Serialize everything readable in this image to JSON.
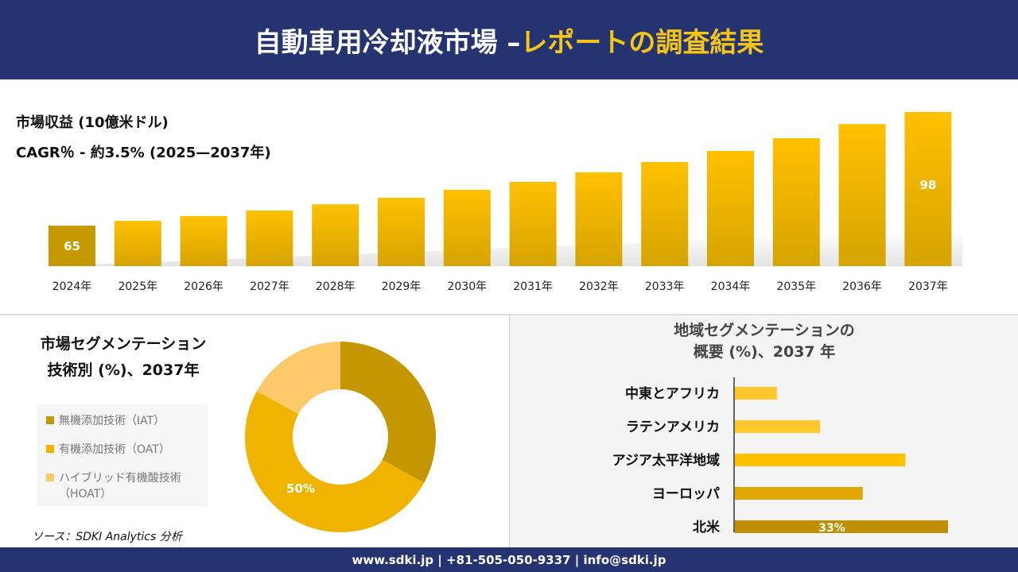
{
  "header": {
    "title_white": "自動車用冷却液市場 –",
    "title_yellow": "レポートの調査結果"
  },
  "revenue": {
    "label": "市場収益 (10億米ドル)",
    "cagr": "CAGR％ - 約3.5% (2025—2037年)"
  },
  "chart_data": [
    {
      "type": "bar",
      "categories": [
        "2024年",
        "2025年",
        "2026年",
        "2027年",
        "2028年",
        "2029年",
        "2030年",
        "2031年",
        "2032年",
        "2033年",
        "2034年",
        "2035年",
        "2036年",
        "2037年"
      ],
      "values": [
        65,
        66.4,
        67.8,
        69.4,
        71.2,
        73.1,
        75.4,
        77.7,
        80.5,
        83.5,
        86.7,
        90.4,
        94.5,
        98
      ],
      "data_labels": {
        "0": "65",
        "13": "98"
      },
      "ylabel": "市場収益 (10億米ドル)",
      "grid": false,
      "bar_color": "#f0b400"
    },
    {
      "type": "pie",
      "title": "市場セグメンテーション 技術別 (%)、2037年",
      "donut": true,
      "labels": [
        "無機添加技術（IAT）",
        "有機添加技術（OAT）",
        "ハイブリッド有機酸技術（HOAT）"
      ],
      "values": [
        33,
        50,
        17
      ],
      "colors": [
        "#c49600",
        "#f0b400",
        "#fdc96a"
      ],
      "data_labels": {
        "1": "50%"
      },
      "legend": "left"
    },
    {
      "type": "bar",
      "orientation": "horizontal",
      "title": "地域セグメンテーションの 概要 (%)、2037 年",
      "categories": [
        "中東とアフリカ",
        "ラテンアメリカ",
        "アジア太平洋地域",
        "ヨーロッパ",
        "北米"
      ],
      "values": [
        6.5,
        13.2,
        26.4,
        19.8,
        33
      ],
      "colors": [
        "#ffc72c",
        "#ffc72c",
        "#ffc000",
        "#e0a800",
        "#bf8f00"
      ],
      "data_labels": {
        "4": "33%"
      }
    }
  ],
  "segment": {
    "title_line1": "市場セグメンテーション",
    "title_line2": "技術別 (%)、2037年",
    "legend": [
      "無機添加技術（IAT）",
      "有機添加技術（OAT）",
      "ハイブリッド有機酸技術",
      "（HOAT）"
    ]
  },
  "region": {
    "title_line1": "地域セグメンテーションの",
    "title_line2": "概要 (%)、2037 年"
  },
  "source": "ソース：SDKI Analytics 分析",
  "footer": "www.sdki.jp | +81-505-050-9337 | info@sdki.jp"
}
